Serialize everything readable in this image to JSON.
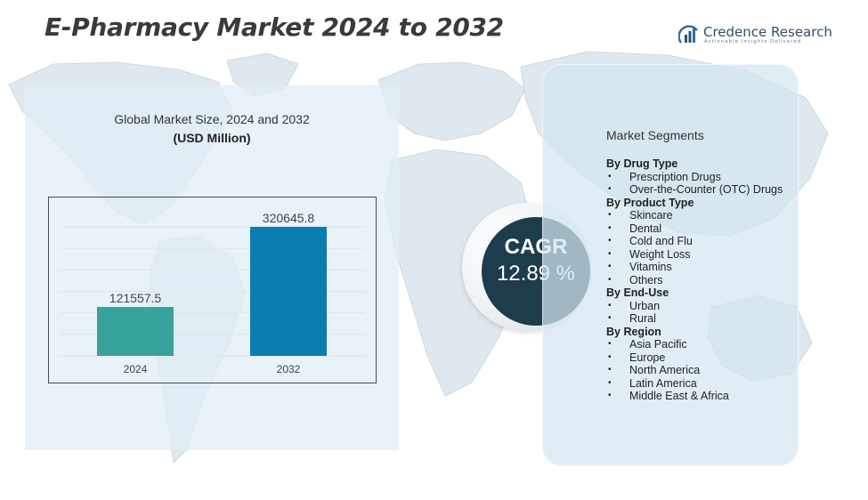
{
  "title": "E-Pharmacy Market 2024 to 2032",
  "logo": {
    "name": "Credence Research",
    "tagline": "Actionable Insights Delivered",
    "icon": "bar-chart-logo-icon"
  },
  "chart_title": "Global Market Size, 2024 and 2032",
  "chart_unit": "(USD Million)",
  "chart_data": {
    "type": "bar",
    "categories": [
      "2024",
      "2032"
    ],
    "values": [
      121557.5,
      320645.8
    ],
    "value_labels": [
      "121557.5",
      "320645.8"
    ],
    "colors": [
      "#36a39c",
      "#0a7eb2"
    ],
    "ylim": [
      0,
      320645.8
    ],
    "grid": true,
    "title": "Global Market Size, 2024 and 2032",
    "ylabel": "(USD Million)",
    "xlabel": ""
  },
  "cagr": {
    "label": "CAGR",
    "value": "12.89 %"
  },
  "segments": {
    "title": "Market Segments",
    "groups": [
      {
        "title": "By  Drug Type",
        "items": [
          "Prescription Drugs",
          "Over-the-Counter (OTC) Drugs"
        ]
      },
      {
        "title": "By Product Type",
        "items": [
          "Skincare",
          "Dental",
          "Cold and Flu",
          "Weight Loss",
          "Vitamins",
          "Others"
        ]
      },
      {
        "title": "By End-Use",
        "items": [
          "Urban",
          "Rural"
        ]
      },
      {
        "title": "By Region",
        "items": [
          "Asia Pacific",
          "Europe",
          "North America",
          "Latin America",
          "Middle East & Africa"
        ]
      }
    ]
  },
  "colors": {
    "title": "#3a3a3a",
    "cagr_circle": "#1d3d4d",
    "left_panel": "#e2eef6",
    "right_panel": "#d4e6f0"
  }
}
